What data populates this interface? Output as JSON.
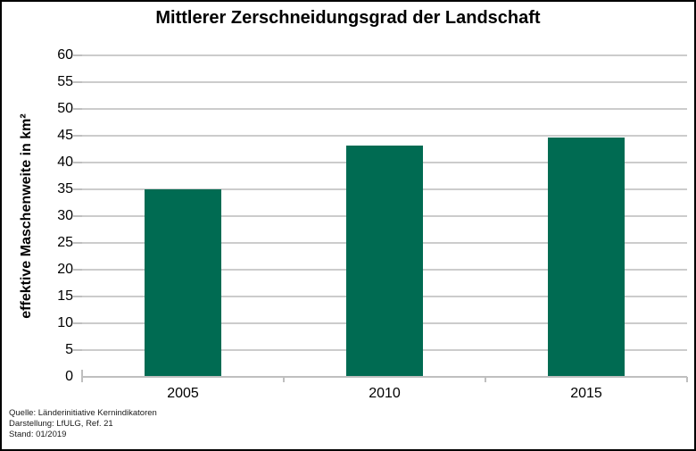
{
  "chart_data": {
    "type": "bar",
    "title": "Mittlerer Zerschneidungsgrad der Landschaft",
    "xlabel": "",
    "ylabel": "effektive Maschenweite in km²",
    "categories": [
      "2005",
      "2010",
      "2015"
    ],
    "values": [
      35.0,
      43.2,
      44.7
    ],
    "ylim": [
      0,
      60
    ],
    "ytick_step": 5,
    "grid": true,
    "legend": "none",
    "colors": {
      "bar": "#006B52",
      "gridline": "#CCCCCC",
      "axis": "#BFBFBF",
      "text": "#000000"
    }
  },
  "source": {
    "lines": [
      "Quelle: Länderinitiative Kernindikatoren",
      "Darstellung: LfULG, Ref. 21",
      "Stand: 01/2019"
    ]
  }
}
